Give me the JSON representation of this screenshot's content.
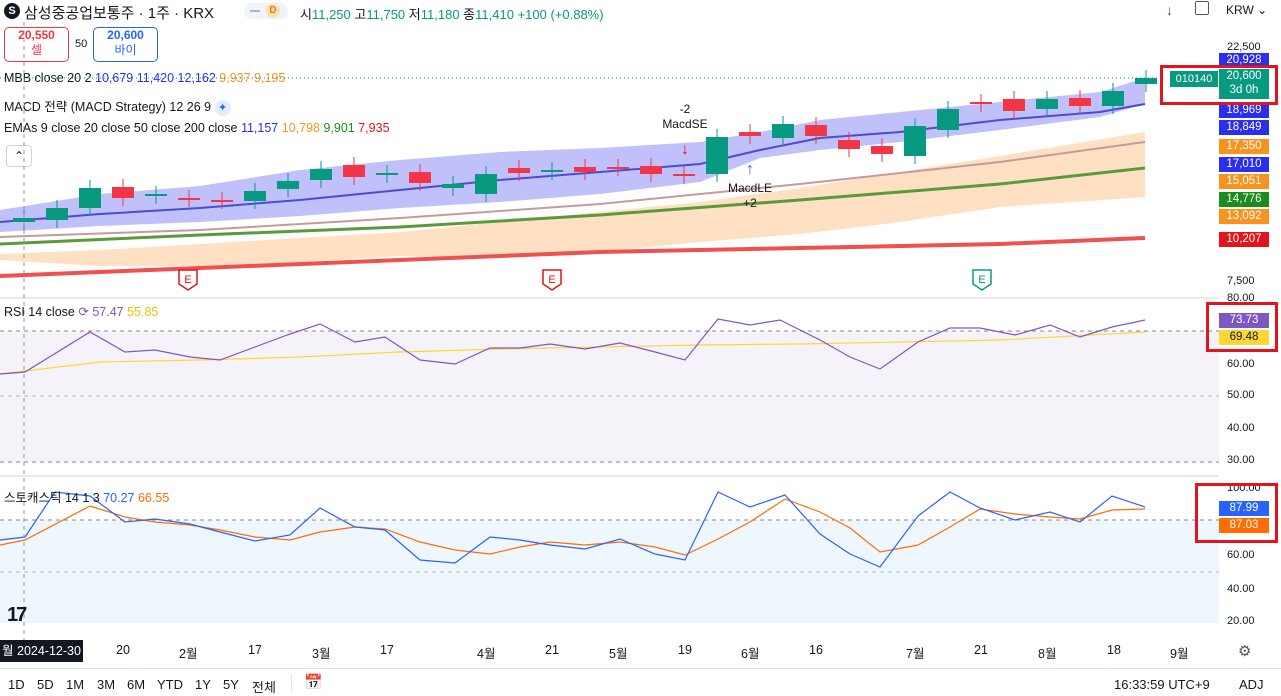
{
  "header": {
    "symbol_icon": "S",
    "symbol": "삼성중공업보통주 · 1주 · KRX",
    "delay_badge": "D",
    "ohlc": {
      "o_label": "시",
      "o": "11,250",
      "h_label": "고",
      "h": "11,750",
      "l_label": "저",
      "l": "11,180",
      "c_label": "종",
      "c": "11,410",
      "change": "+100 (+0.88%)"
    },
    "currency": "KRW",
    "sell": {
      "price": "20,550",
      "label": "셀"
    },
    "spread": "50",
    "buy": {
      "price": "20,600",
      "label": "바이"
    }
  },
  "legends": {
    "mbb": {
      "name": "MBB close 20 2",
      "v1": "10,679",
      "v2": "11,420",
      "v3": "12,162",
      "v4": "9,937",
      "v5": "9,195"
    },
    "macd": {
      "name": "MACD 전략 (MACD Strategy) 12 26 9"
    },
    "emas": {
      "name": "EMAs 9 close 20 close 50 close 200 close",
      "v1": "11,157",
      "v2": "10,798",
      "v3": "9,901",
      "v4": "7,935"
    },
    "rsi": {
      "name": "RSI 14 close",
      "v1": "57.47",
      "v2": "55.85"
    },
    "stoch": {
      "name": "스토캐스틱 14 1 3",
      "v1": "70.27",
      "v2": "66.55"
    }
  },
  "signals": {
    "short": {
      "qty": "-2",
      "label": "MacdSE"
    },
    "long": {
      "label": "MacdLE",
      "qty": "+2"
    },
    "earnings": "E"
  },
  "price_axis": {
    "ticks": [
      "22,500",
      "7,500"
    ],
    "tags": [
      {
        "v": "20,928",
        "c": "#2a2ef0"
      },
      {
        "v": "20,600",
        "sub": "3d 0h",
        "c": "#089981"
      },
      {
        "v": "18,969",
        "c": "#2a2ef0"
      },
      {
        "v": "18,849",
        "c": "#2a2ef0"
      },
      {
        "v": "17,350",
        "c": "#f7931e"
      },
      {
        "v": "17,010",
        "c": "#2a2ef0"
      },
      {
        "v": "15,051",
        "c": "#f7931e"
      },
      {
        "v": "14,776",
        "c": "#1a8d1a"
      },
      {
        "v": "13,092",
        "c": "#f7931e"
      },
      {
        "v": "10,207",
        "c": "#e3141b"
      }
    ],
    "symbol_code": "010140"
  },
  "rsi_axis": {
    "ticks": [
      "80.00",
      "60.00",
      "50.00",
      "40.00",
      "30.00"
    ],
    "tags": [
      {
        "v": "73.73",
        "c": "#7e57c2"
      },
      {
        "v": "69.48",
        "c": "#fdd835"
      }
    ]
  },
  "stoch_axis": {
    "ticks": [
      "100.00",
      "60.00",
      "40.00",
      "20.00"
    ],
    "tags": [
      {
        "v": "87.99",
        "c": "#2962ff"
      },
      {
        "v": "87.03",
        "c": "#ff6d00"
      }
    ]
  },
  "time_axis": {
    "current": "월 2024-12-30",
    "labels": [
      "20",
      "2월",
      "17",
      "3월",
      "17",
      "4월",
      "21",
      "5월",
      "19",
      "6월",
      "16",
      "7월",
      "21",
      "8월",
      "18",
      "9월"
    ]
  },
  "bottom": {
    "ranges": [
      "1D",
      "5D",
      "1M",
      "3M",
      "6M",
      "YTD",
      "1Y",
      "5Y",
      "전체"
    ],
    "clock": "16:33:59 UTC+9",
    "adj": "ADJ"
  },
  "colors": {
    "up": "#089981",
    "down": "#f23645",
    "bb_fill": "#8c8cf5",
    "ema_fill": "#ffcc99"
  }
}
